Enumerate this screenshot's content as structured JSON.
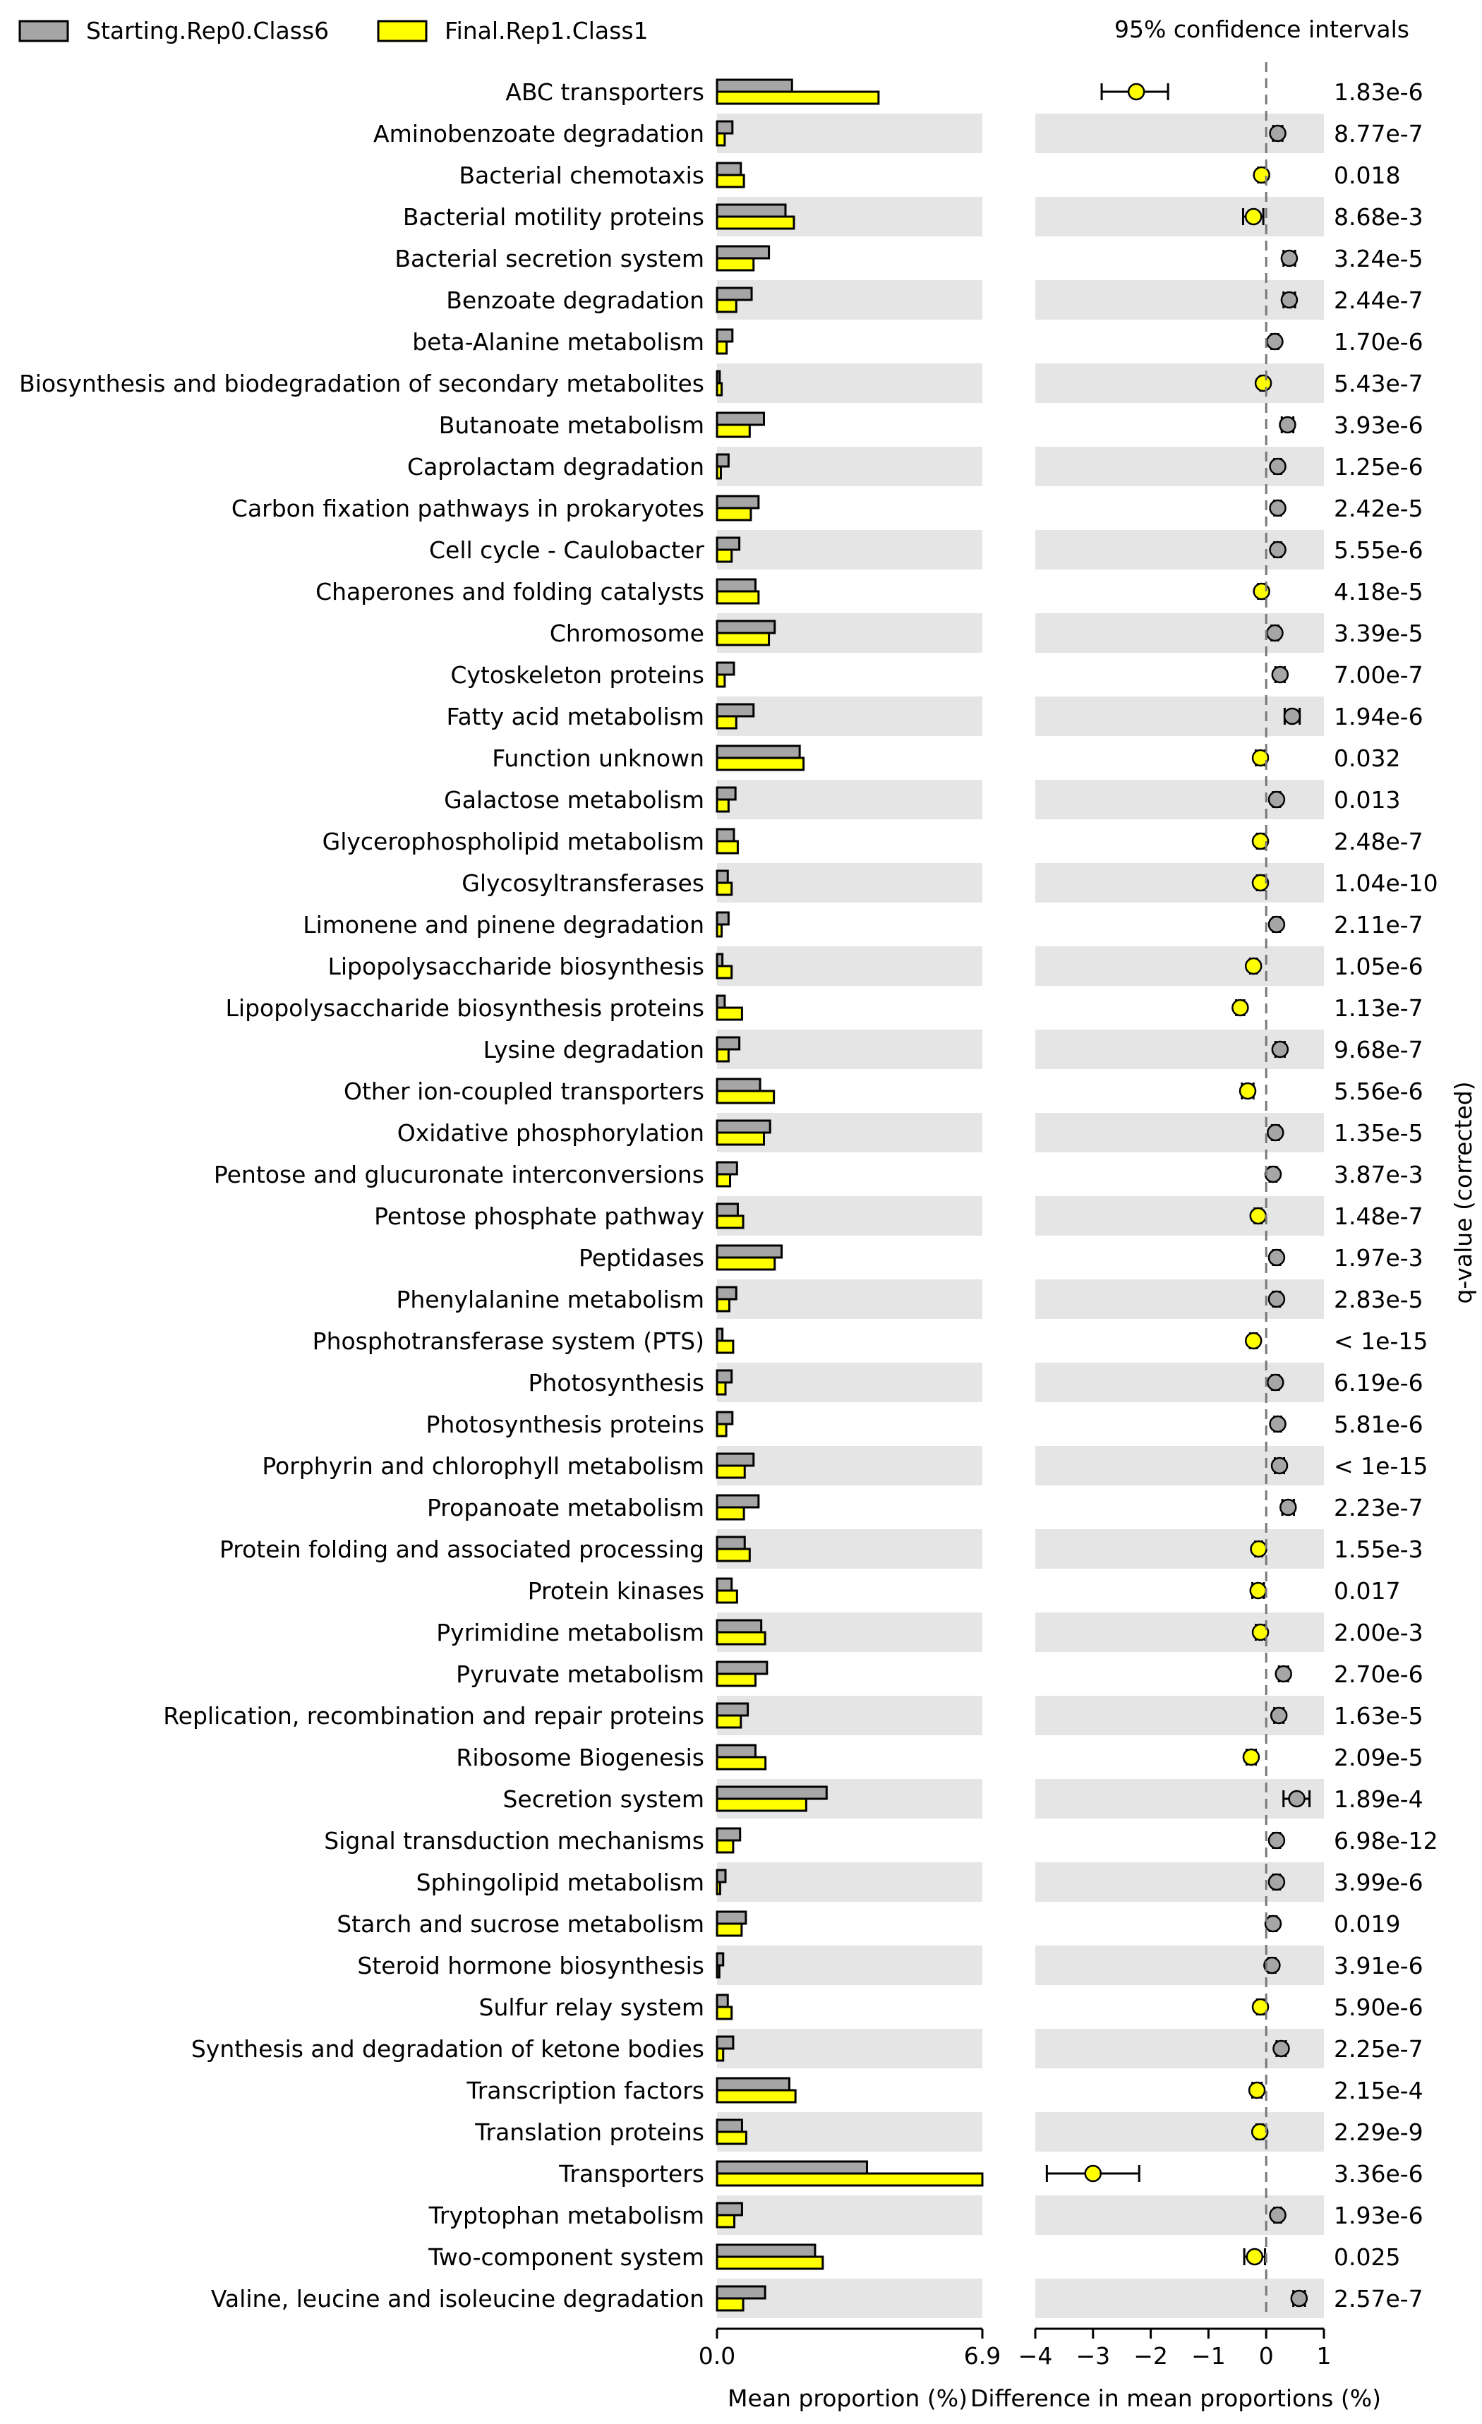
{
  "chart_data": {
    "type": "bar",
    "legend": {
      "placement": "top-left",
      "entries": [
        {
          "name": "Starting.Rep0.Class6",
          "color": "#a6a6a6"
        },
        {
          "name": "Final.Rep1.Class1",
          "color": "#ffff00"
        }
      ]
    },
    "ci_title": "95% confidence intervals",
    "qvalue_axis_label": "q-value (corrected)",
    "bar_panel": {
      "xlabel": "Mean proportion (%)",
      "xlim": [
        0,
        6.9
      ],
      "xticks": [
        "0.0",
        "6.9"
      ]
    },
    "diff_panel": {
      "xlabel": "Difference in mean proportions (%)",
      "xlim": [
        -4,
        1
      ],
      "xticks": [
        "−4",
        "−3",
        "−2",
        "−1",
        "0",
        "1"
      ]
    },
    "categories": [
      "ABC transporters",
      "Aminobenzoate degradation",
      "Bacterial chemotaxis",
      "Bacterial motility proteins",
      "Bacterial secretion system",
      "Benzoate degradation",
      "beta-Alanine metabolism",
      "Biosynthesis and biodegradation of secondary metabolites",
      "Butanoate metabolism",
      "Caprolactam degradation",
      "Carbon fixation pathways in prokaryotes",
      "Cell cycle - Caulobacter",
      "Chaperones and folding catalysts",
      "Chromosome",
      "Cytoskeleton proteins",
      "Fatty acid metabolism",
      "Function unknown",
      "Galactose metabolism",
      "Glycerophospholipid metabolism",
      "Glycosyltransferases",
      "Limonene and pinene degradation",
      "Lipopolysaccharide biosynthesis",
      "Lipopolysaccharide biosynthesis proteins",
      "Lysine degradation",
      "Other ion-coupled transporters",
      "Oxidative phosphorylation",
      "Pentose and glucuronate interconversions",
      "Pentose phosphate pathway",
      "Peptidases",
      "Phenylalanine metabolism",
      "Phosphotransferase system (PTS)",
      "Photosynthesis",
      "Photosynthesis proteins",
      "Porphyrin and chlorophyll metabolism",
      "Propanoate metabolism",
      "Protein folding and associated processing",
      "Protein kinases",
      "Pyrimidine metabolism",
      "Pyruvate metabolism",
      "Replication, recombination and repair proteins",
      "Ribosome Biogenesis",
      "Secretion system",
      "Signal transduction mechanisms",
      "Sphingolipid metabolism",
      "Starch and sucrose metabolism",
      "Steroid hormone biosynthesis",
      "Sulfur relay system",
      "Synthesis and degradation of ketone bodies",
      "Transcription factors",
      "Translation proteins",
      "Transporters",
      "Tryptophan metabolism",
      "Two-component system",
      "Valine, leucine and isoleucine degradation"
    ],
    "series": [
      {
        "name": "Starting.Rep0.Class6",
        "color": "#a6a6a6",
        "values": [
          1.95,
          0.4,
          0.62,
          1.78,
          1.35,
          0.9,
          0.4,
          0.07,
          1.22,
          0.3,
          1.08,
          0.58,
          1.0,
          1.5,
          0.44,
          0.95,
          2.15,
          0.48,
          0.44,
          0.28,
          0.3,
          0.14,
          0.2,
          0.58,
          1.12,
          1.38,
          0.52,
          0.54,
          1.68,
          0.5,
          0.14,
          0.38,
          0.4,
          0.95,
          1.08,
          0.72,
          0.38,
          1.15,
          1.3,
          0.8,
          1.0,
          2.85,
          0.6,
          0.22,
          0.75,
          0.16,
          0.28,
          0.42,
          1.88,
          0.65,
          3.9,
          0.65,
          2.55,
          1.25
        ]
      },
      {
        "name": "Final.Rep1.Class1",
        "color": "#ffff00",
        "values": [
          4.2,
          0.2,
          0.7,
          2.0,
          0.95,
          0.5,
          0.25,
          0.12,
          0.85,
          0.1,
          0.88,
          0.38,
          1.08,
          1.35,
          0.2,
          0.5,
          2.25,
          0.3,
          0.54,
          0.38,
          0.12,
          0.38,
          0.65,
          0.3,
          1.48,
          1.22,
          0.34,
          0.68,
          1.5,
          0.32,
          0.42,
          0.22,
          0.24,
          0.72,
          0.7,
          0.85,
          0.52,
          1.25,
          1.0,
          0.62,
          1.26,
          2.32,
          0.42,
          0.08,
          0.64,
          0.06,
          0.38,
          0.16,
          2.04,
          0.76,
          6.9,
          0.45,
          2.75,
          0.68
        ]
      },
      {
        "name": "Difference",
        "mean": [
          -2.25,
          0.2,
          -0.08,
          -0.22,
          0.4,
          0.4,
          0.15,
          -0.05,
          0.37,
          0.2,
          0.2,
          0.2,
          -0.08,
          0.15,
          0.24,
          0.45,
          -0.1,
          0.18,
          -0.1,
          -0.1,
          0.18,
          -0.22,
          -0.45,
          0.24,
          -0.32,
          0.16,
          0.12,
          -0.14,
          0.18,
          0.18,
          -0.22,
          0.16,
          0.2,
          0.23,
          0.38,
          -0.13,
          -0.14,
          -0.1,
          0.3,
          0.22,
          -0.26,
          0.53,
          0.18,
          0.18,
          0.12,
          0.1,
          -0.1,
          0.26,
          -0.16,
          -0.11,
          -3.0,
          0.2,
          -0.2,
          0.57
        ],
        "ci_low": [
          -2.85,
          0.12,
          -0.14,
          -0.4,
          0.3,
          0.3,
          0.09,
          -0.1,
          0.27,
          0.14,
          0.14,
          0.14,
          -0.14,
          0.09,
          0.16,
          0.32,
          -0.18,
          0.12,
          -0.16,
          -0.16,
          0.12,
          -0.28,
          -0.52,
          0.16,
          -0.42,
          0.1,
          0.06,
          -0.2,
          0.12,
          0.12,
          -0.28,
          0.1,
          0.14,
          0.15,
          0.28,
          -0.19,
          -0.24,
          -0.18,
          0.22,
          0.14,
          -0.34,
          0.3,
          0.12,
          0.12,
          0.06,
          0.04,
          -0.16,
          0.18,
          -0.24,
          -0.17,
          -3.8,
          0.14,
          -0.38,
          0.47
        ],
        "ci_high": [
          -1.7,
          0.28,
          -0.02,
          -0.05,
          0.5,
          0.5,
          0.21,
          0.0,
          0.47,
          0.26,
          0.26,
          0.26,
          -0.02,
          0.21,
          0.32,
          0.58,
          -0.02,
          0.24,
          -0.04,
          -0.04,
          0.24,
          -0.16,
          -0.38,
          0.32,
          -0.22,
          0.22,
          0.18,
          -0.08,
          0.24,
          0.24,
          -0.16,
          0.22,
          0.26,
          0.31,
          0.48,
          -0.07,
          -0.04,
          -0.02,
          0.38,
          0.3,
          -0.18,
          0.75,
          0.24,
          0.24,
          0.18,
          0.16,
          -0.04,
          0.34,
          -0.08,
          -0.05,
          -2.2,
          0.26,
          -0.02,
          0.67
        ]
      },
      {
        "name": "q-value",
        "labels": [
          "1.83e-6",
          "8.77e-7",
          "0.018",
          "8.68e-3",
          "3.24e-5",
          "2.44e-7",
          "1.70e-6",
          "5.43e-7",
          "3.93e-6",
          "1.25e-6",
          "2.42e-5",
          "5.55e-6",
          "4.18e-5",
          "3.39e-5",
          "7.00e-7",
          "1.94e-6",
          "0.032",
          "0.013",
          "2.48e-7",
          "1.04e-10",
          "2.11e-7",
          "1.05e-6",
          "1.13e-7",
          "9.68e-7",
          "5.56e-6",
          "1.35e-5",
          "3.87e-3",
          "1.48e-7",
          "1.97e-3",
          "2.83e-5",
          "< 1e-15",
          "6.19e-6",
          "5.81e-6",
          "< 1e-15",
          "2.23e-7",
          "1.55e-3",
          "0.017",
          "2.00e-3",
          "2.70e-6",
          "1.63e-5",
          "2.09e-5",
          "1.89e-4",
          "6.98e-12",
          "3.99e-6",
          "0.019",
          "3.91e-6",
          "5.90e-6",
          "2.25e-7",
          "2.15e-4",
          "2.29e-9",
          "3.36e-6",
          "1.93e-6",
          "0.025",
          "2.57e-7"
        ]
      }
    ]
  }
}
